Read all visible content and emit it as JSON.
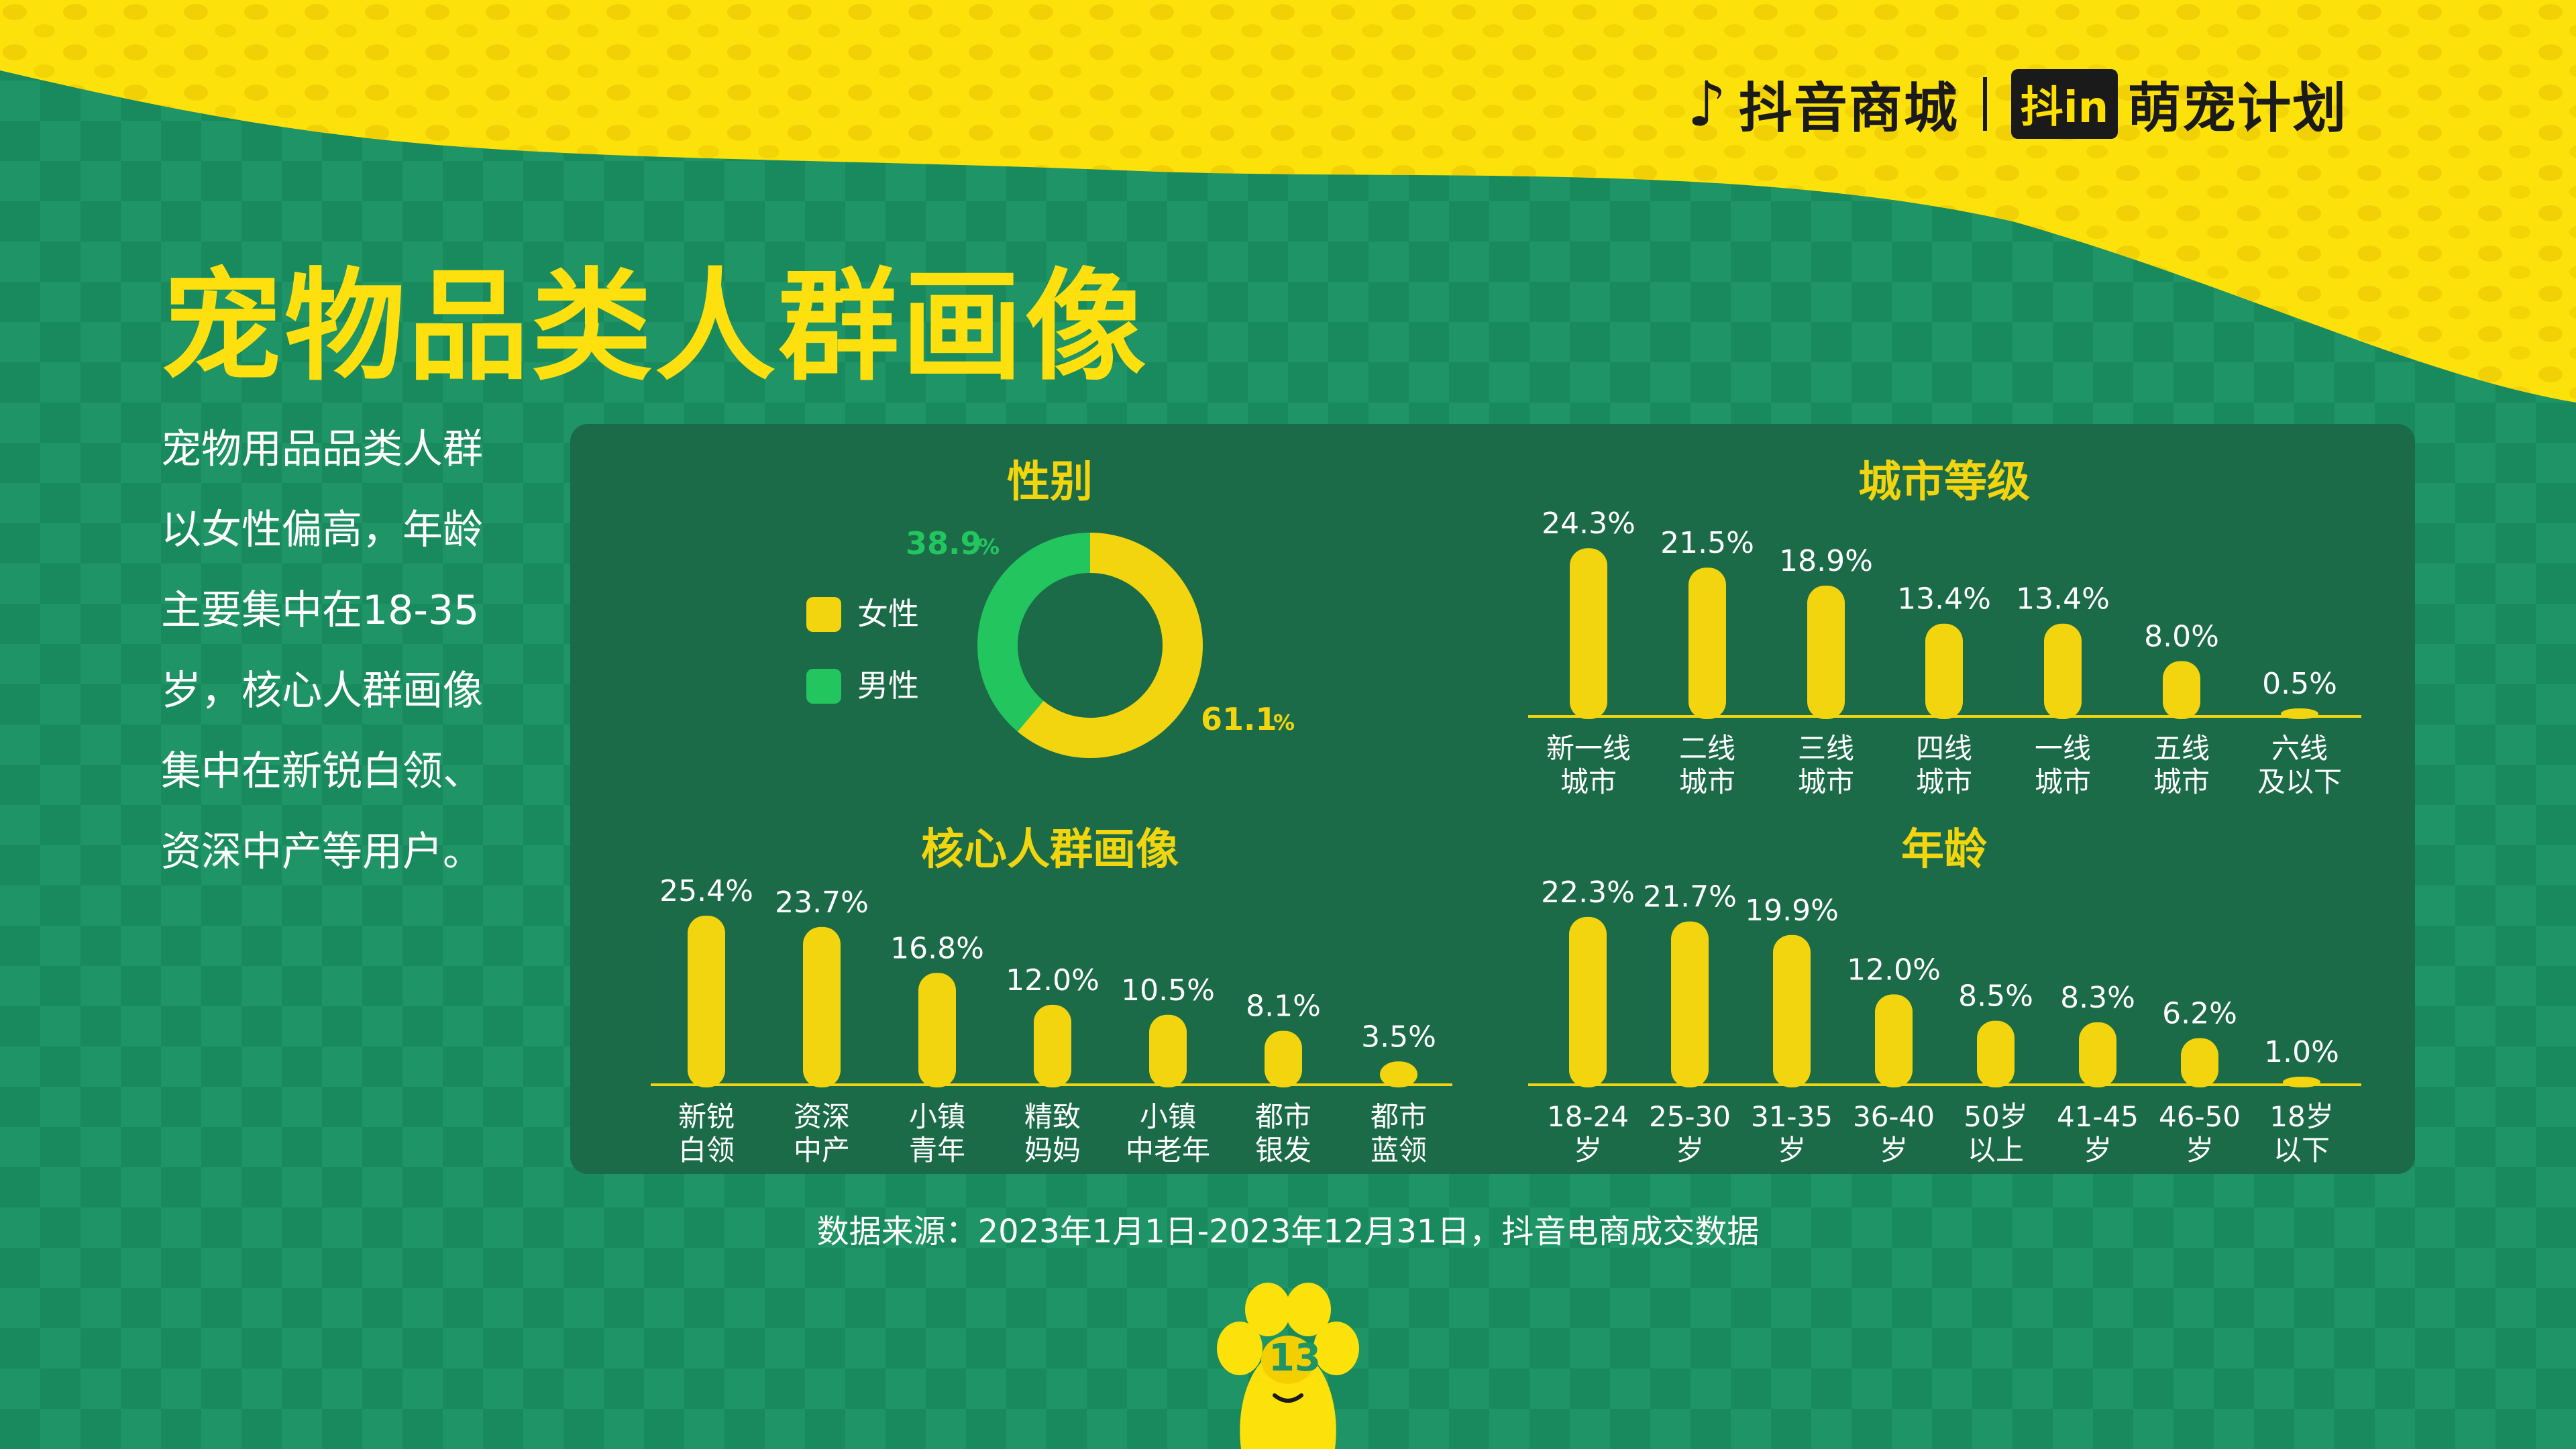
{
  "header": {
    "brand": "抖音商城",
    "partner_box": "抖in",
    "partner_name": "萌宠计划"
  },
  "page_title": "宠物品类人群画像",
  "summary": "宠物用品品类人群以女性偏高，年龄主要集中在18-35岁，核心人群画像集中在新锐白领、资深中产等用户。",
  "source": "数据来源：2023年1月1日-2023年12月31日，抖音电商成交数据",
  "page_number": "13",
  "colors": {
    "accent": "#f2d40f",
    "female": "#f2d40f",
    "male": "#22c55e",
    "panel": "#1b6b48",
    "background": "#1f9466"
  },
  "icons": {
    "logo": "douyin-note-icon",
    "pager": "paw-icon"
  },
  "chart_data": [
    {
      "type": "pie",
      "title": "性别",
      "labels": [
        "女性",
        "男性"
      ],
      "values": [
        61.1,
        38.9
      ],
      "value_labels": [
        "61.1",
        "38.9"
      ],
      "unit": "%",
      "legend_position": "left"
    },
    {
      "type": "bar",
      "title": "城市等级",
      "categories": [
        [
          "新一线",
          "城市"
        ],
        [
          "二线",
          "城市"
        ],
        [
          "三线",
          "城市"
        ],
        [
          "四线",
          "城市"
        ],
        [
          "一线",
          "城市"
        ],
        [
          "五线",
          "城市"
        ],
        [
          "六线",
          "及以下"
        ]
      ],
      "values": [
        24.3,
        21.5,
        18.9,
        13.4,
        13.4,
        8.0,
        0.5
      ],
      "value_labels": [
        "24.3%",
        "21.5%",
        "18.9%",
        "13.4%",
        "13.4%",
        "8.0%",
        "0.5%"
      ],
      "ylim": [
        0,
        25
      ]
    },
    {
      "type": "bar",
      "title": "核心人群画像",
      "categories": [
        [
          "新锐",
          "白领"
        ],
        [
          "资深",
          "中产"
        ],
        [
          "小镇",
          "青年"
        ],
        [
          "精致",
          "妈妈"
        ],
        [
          "小镇",
          "中老年"
        ],
        [
          "都市",
          "银发"
        ],
        [
          "都市",
          "蓝领"
        ]
      ],
      "values": [
        25.4,
        23.7,
        16.8,
        12.0,
        10.5,
        8.1,
        3.5
      ],
      "value_labels": [
        "25.4%",
        "23.7%",
        "16.8%",
        "12.0%",
        "10.5%",
        "8.1%",
        "3.5%"
      ],
      "ylim": [
        0,
        26
      ]
    },
    {
      "type": "bar",
      "title": "年龄",
      "categories": [
        [
          "18-24",
          "岁"
        ],
        [
          "25-30",
          "岁"
        ],
        [
          "31-35",
          "岁"
        ],
        [
          "36-40",
          "岁"
        ],
        [
          "50岁",
          "以上"
        ],
        [
          "41-45",
          "岁"
        ],
        [
          "46-50",
          "岁"
        ],
        [
          "18岁",
          "以下"
        ]
      ],
      "values": [
        22.3,
        21.7,
        19.9,
        12.0,
        8.5,
        8.3,
        6.2,
        1.0
      ],
      "value_labels": [
        "22.3%",
        "21.7%",
        "19.9%",
        "12.0%",
        "8.5%",
        "8.3%",
        "6.2%",
        "1.0%"
      ],
      "ylim": [
        0,
        23
      ]
    }
  ]
}
